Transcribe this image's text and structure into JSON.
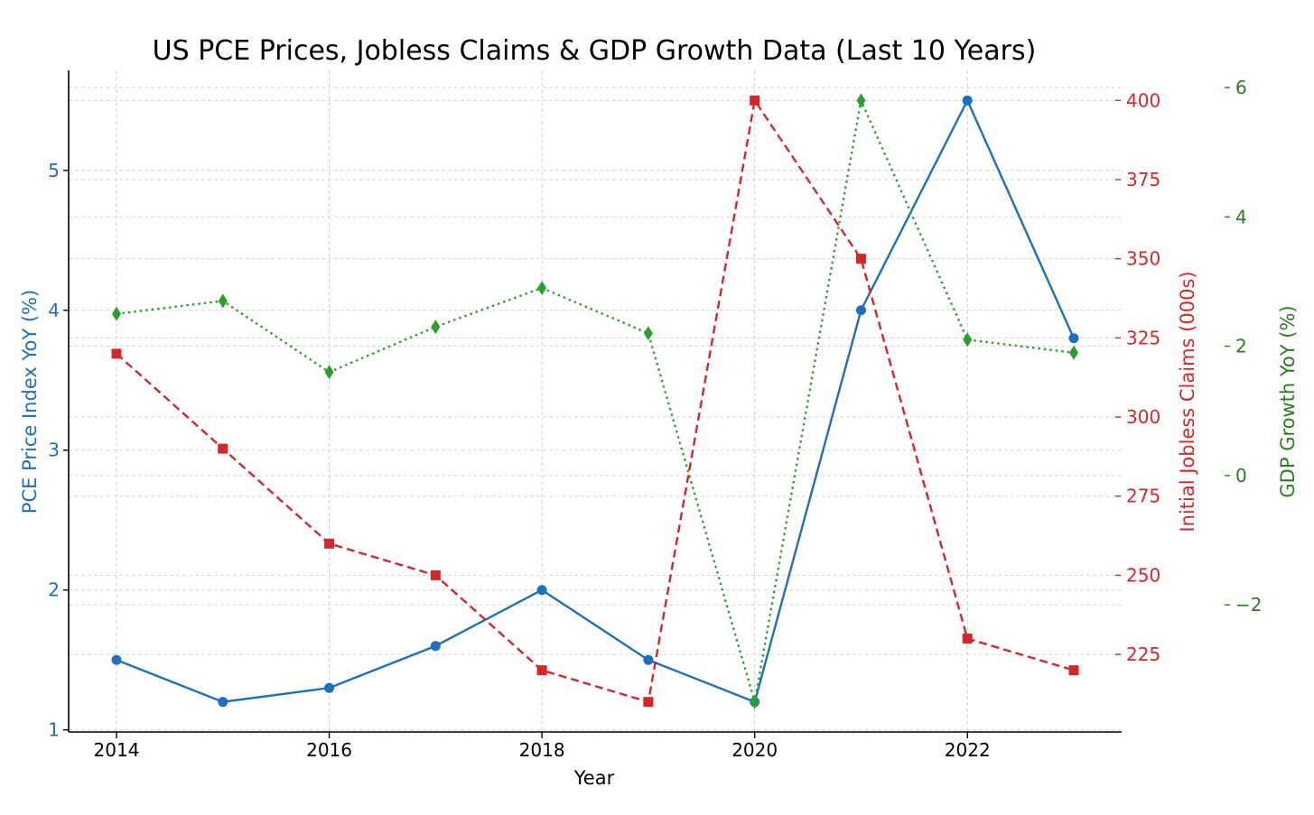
{
  "chart_data": {
    "type": "line",
    "title": "US PCE Prices, Jobless Claims & GDP Growth Data (Last 10 Years)",
    "xlabel": "Year",
    "x": [
      2014,
      2015,
      2016,
      2017,
      2018,
      2019,
      2020,
      2021,
      2022,
      2023
    ],
    "xlim": [
      2013.55,
      2023.45
    ],
    "x_ticks": [
      2014,
      2016,
      2018,
      2020,
      2022
    ],
    "x_tick_labels": [
      "2014",
      "2016",
      "2018",
      "2020",
      "2022"
    ],
    "grid": true,
    "series": [
      {
        "axis": "left",
        "values": [
          1.5,
          1.2,
          1.3,
          1.6,
          2.0,
          1.5,
          1.2,
          4.0,
          5.5,
          3.8
        ],
        "color": "#1f6fbf",
        "line_style": "solid",
        "marker": "circle"
      },
      {
        "axis": "right",
        "values": [
          320,
          290,
          260,
          250,
          220,
          210,
          400,
          350,
          230,
          220
        ],
        "color": "#d62728",
        "line_style": "dashed",
        "marker": "square"
      },
      {
        "axis": "far-right",
        "values": [
          2.5,
          2.7,
          1.6,
          2.3,
          2.9,
          2.2,
          -3.5,
          5.8,
          2.1,
          1.9
        ],
        "color": "#2ca02c",
        "line_style": "dotted",
        "marker": "diamond"
      }
    ],
    "axes": {
      "left": {
        "label": "PCE Price Index YoY (%)",
        "color": "#1f6fbf",
        "ylim": [
          0.985,
          5.715
        ],
        "ticks": [
          1,
          2,
          3,
          4,
          5
        ],
        "tick_labels": [
          "1",
          "2",
          "3",
          "4",
          "5"
        ]
      },
      "right": {
        "label": "Initial Jobless Claims (000s)",
        "color": "#d62728",
        "ylim": [
          200.5,
          409.5
        ],
        "ticks": [
          225,
          250,
          275,
          300,
          325,
          350,
          375,
          400
        ],
        "tick_labels": [
          "225",
          "250",
          "275",
          "300",
          "325",
          "350",
          "375",
          "400"
        ]
      },
      "far_right": {
        "label": "GDP Growth YoY (%)",
        "color": "#2a7d1e",
        "ylim": [
          -3.965,
          6.265
        ],
        "ticks": [
          -2,
          0,
          2,
          4,
          6
        ],
        "tick_labels": [
          "−2",
          "0",
          "2",
          "4",
          "6"
        ]
      }
    }
  }
}
